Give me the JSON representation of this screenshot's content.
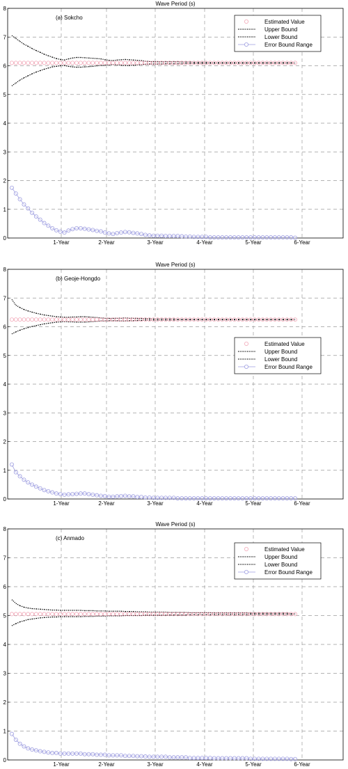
{
  "colors": {
    "estimated": "#f2a8b8",
    "bounds": "#000000",
    "range": "#9d9de0",
    "grid": "#9a9a9a"
  },
  "chart_data": [
    {
      "type": "line",
      "title": "Wave Period (s)",
      "annotation": "(a) Sokcho",
      "xlabel": "",
      "ylabel": "",
      "ylim": [
        0,
        8
      ],
      "yticks": [
        "0",
        "1",
        "2",
        "3",
        "4",
        "5",
        "6",
        "7",
        "8"
      ],
      "xtick_labels": [
        "1-Year",
        "2-Year",
        "3-Year",
        "4-Year",
        "5-Year",
        "6-Year"
      ],
      "grid": true,
      "legend_position": "top-right",
      "legend": [
        "Estimated Value",
        "Upper Bound",
        "Lower Bound",
        "Error Bound Range"
      ],
      "series": [
        {
          "name": "Estimated Value",
          "values": [
            6.1,
            6.1,
            6.1,
            6.1,
            6.1,
            6.1,
            6.1,
            6.1,
            6.1,
            6.1,
            6.1,
            6.1,
            6.1,
            6.1,
            6.1,
            6.1,
            6.1,
            6.1,
            6.1,
            6.1,
            6.1,
            6.1,
            6.1,
            6.1,
            6.1,
            6.1,
            6.1,
            6.1,
            6.1,
            6.1,
            6.1,
            6.1,
            6.1,
            6.1,
            6.1,
            6.1,
            6.1,
            6.1,
            6.1,
            6.1,
            6.1,
            6.1,
            6.1,
            6.1,
            6.1,
            6.1,
            6.1,
            6.1,
            6.1,
            6.1,
            6.1,
            6.1,
            6.1,
            6.1,
            6.1,
            6.1,
            6.1,
            6.1,
            6.1,
            6.1,
            6.1,
            6.1,
            6.1,
            6.1,
            6.1,
            6.1,
            6.1,
            6.1,
            6.1,
            6.1,
            6.1
          ]
        },
        {
          "name": "Upper Bound",
          "values": [
            7.05,
            6.95,
            6.85,
            6.75,
            6.68,
            6.6,
            6.53,
            6.47,
            6.4,
            6.35,
            6.3,
            6.25,
            6.22,
            6.2,
            6.24,
            6.27,
            6.29,
            6.29,
            6.28,
            6.27,
            6.26,
            6.25,
            6.24,
            6.21,
            6.19,
            6.18,
            6.2,
            6.21,
            6.22,
            6.21,
            6.2,
            6.19,
            6.18,
            6.16,
            6.15,
            6.14,
            6.14,
            6.14,
            6.14,
            6.14,
            6.14,
            6.14,
            6.13,
            6.13,
            6.13,
            6.12,
            6.12,
            6.12,
            6.12,
            6.11,
            6.11,
            6.11,
            6.11,
            6.11,
            6.11,
            6.11,
            6.11,
            6.11,
            6.11,
            6.11,
            6.11,
            6.11,
            6.11,
            6.11,
            6.11,
            6.11,
            6.11,
            6.11,
            6.11,
            6.11,
            6.1
          ]
        },
        {
          "name": "Lower Bound",
          "values": [
            5.3,
            5.4,
            5.5,
            5.58,
            5.65,
            5.72,
            5.78,
            5.83,
            5.88,
            5.92,
            5.96,
            5.98,
            6.0,
            6.01,
            5.98,
            5.96,
            5.95,
            5.95,
            5.96,
            5.97,
            5.98,
            6.0,
            6.01,
            6.02,
            6.03,
            6.04,
            6.03,
            6.02,
            6.01,
            6.01,
            6.02,
            6.03,
            6.04,
            6.05,
            6.06,
            6.06,
            6.06,
            6.06,
            6.07,
            6.07,
            6.07,
            6.07,
            6.07,
            6.08,
            6.08,
            6.08,
            6.08,
            6.08,
            6.08,
            6.09,
            6.09,
            6.09,
            6.09,
            6.09,
            6.09,
            6.09,
            6.09,
            6.09,
            6.09,
            6.09,
            6.09,
            6.09,
            6.09,
            6.09,
            6.09,
            6.09,
            6.09,
            6.09,
            6.09,
            6.09,
            6.09
          ]
        },
        {
          "name": "Error Bound Range",
          "values": [
            1.75,
            1.55,
            1.35,
            1.17,
            1.03,
            0.88,
            0.75,
            0.64,
            0.52,
            0.43,
            0.34,
            0.27,
            0.22,
            0.19,
            0.26,
            0.31,
            0.34,
            0.34,
            0.32,
            0.3,
            0.28,
            0.25,
            0.23,
            0.19,
            0.16,
            0.14,
            0.17,
            0.19,
            0.21,
            0.2,
            0.18,
            0.16,
            0.14,
            0.11,
            0.09,
            0.08,
            0.08,
            0.08,
            0.07,
            0.07,
            0.07,
            0.07,
            0.06,
            0.05,
            0.05,
            0.04,
            0.04,
            0.04,
            0.04,
            0.02,
            0.02,
            0.02,
            0.02,
            0.02,
            0.02,
            0.02,
            0.02,
            0.02,
            0.02,
            0.02,
            0.02,
            0.02,
            0.02,
            0.02,
            0.02,
            0.02,
            0.02,
            0.02,
            0.02,
            0.02,
            0.01
          ]
        }
      ]
    },
    {
      "type": "line",
      "title": "Wave Period (s)",
      "annotation": "(b) Geoje-Hongdo",
      "xlabel": "",
      "ylabel": "",
      "ylim": [
        0,
        8
      ],
      "yticks": [
        "0",
        "1",
        "2",
        "3",
        "4",
        "5",
        "6",
        "7",
        "8"
      ],
      "xtick_labels": [
        "1-Year",
        "2-Year",
        "3-Year",
        "4-Year",
        "5-Year",
        "6-Year"
      ],
      "grid": true,
      "legend_position": "center-right",
      "legend": [
        "Estimated Value",
        "Upper Bound",
        "Lower Bound",
        "Error Bound Range"
      ],
      "series": [
        {
          "name": "Estimated Value",
          "values": [
            6.25,
            6.25,
            6.25,
            6.25,
            6.25,
            6.25,
            6.25,
            6.25,
            6.25,
            6.25,
            6.25,
            6.25,
            6.25,
            6.25,
            6.25,
            6.25,
            6.25,
            6.25,
            6.25,
            6.25,
            6.25,
            6.25,
            6.25,
            6.25,
            6.25,
            6.25,
            6.25,
            6.25,
            6.25,
            6.25,
            6.25,
            6.25,
            6.25,
            6.25,
            6.25,
            6.25,
            6.25,
            6.25,
            6.25,
            6.25,
            6.25,
            6.25,
            6.25,
            6.25,
            6.25,
            6.25,
            6.25,
            6.25,
            6.25,
            6.25,
            6.25,
            6.25,
            6.25,
            6.25,
            6.25,
            6.25,
            6.25,
            6.25,
            6.25,
            6.25,
            6.25,
            6.25,
            6.25,
            6.25,
            6.25,
            6.25,
            6.25,
            6.25,
            6.25,
            6.25,
            6.25
          ]
        },
        {
          "name": "Upper Bound",
          "values": [
            6.95,
            6.75,
            6.67,
            6.6,
            6.55,
            6.51,
            6.47,
            6.44,
            6.41,
            6.39,
            6.37,
            6.35,
            6.34,
            6.33,
            6.33,
            6.34,
            6.34,
            6.35,
            6.35,
            6.34,
            6.33,
            6.32,
            6.31,
            6.3,
            6.29,
            6.29,
            6.3,
            6.3,
            6.31,
            6.3,
            6.3,
            6.29,
            6.29,
            6.28,
            6.28,
            6.27,
            6.27,
            6.27,
            6.27,
            6.27,
            6.27,
            6.26,
            6.26,
            6.26,
            6.26,
            6.26,
            6.26,
            6.26,
            6.26,
            6.26,
            6.26,
            6.26,
            6.26,
            6.26,
            6.26,
            6.26,
            6.26,
            6.26,
            6.26,
            6.26,
            6.26,
            6.26,
            6.26,
            6.26,
            6.26,
            6.26,
            6.26,
            6.26,
            6.26,
            6.26,
            6.26
          ]
        },
        {
          "name": "Lower Bound",
          "values": [
            5.75,
            5.82,
            5.88,
            5.93,
            5.97,
            6.01,
            6.04,
            6.07,
            6.1,
            6.12,
            6.14,
            6.16,
            6.17,
            6.18,
            6.17,
            6.17,
            6.16,
            6.16,
            6.16,
            6.17,
            6.18,
            6.19,
            6.2,
            6.2,
            6.21,
            6.21,
            6.21,
            6.2,
            6.2,
            6.21,
            6.21,
            6.22,
            6.22,
            6.23,
            6.23,
            6.23,
            6.23,
            6.23,
            6.23,
            6.23,
            6.23,
            6.24,
            6.24,
            6.24,
            6.24,
            6.24,
            6.24,
            6.24,
            6.24,
            6.24,
            6.24,
            6.24,
            6.24,
            6.24,
            6.24,
            6.24,
            6.24,
            6.24,
            6.24,
            6.24,
            6.24,
            6.24,
            6.24,
            6.24,
            6.24,
            6.24,
            6.24,
            6.24,
            6.24,
            6.24,
            6.24
          ]
        },
        {
          "name": "Error Bound Range",
          "values": [
            1.2,
            0.93,
            0.79,
            0.67,
            0.58,
            0.5,
            0.43,
            0.37,
            0.31,
            0.27,
            0.23,
            0.19,
            0.17,
            0.15,
            0.16,
            0.17,
            0.18,
            0.19,
            0.19,
            0.17,
            0.15,
            0.13,
            0.11,
            0.1,
            0.08,
            0.08,
            0.09,
            0.1,
            0.11,
            0.09,
            0.09,
            0.07,
            0.07,
            0.05,
            0.05,
            0.04,
            0.04,
            0.04,
            0.04,
            0.04,
            0.04,
            0.02,
            0.02,
            0.02,
            0.02,
            0.02,
            0.02,
            0.02,
            0.02,
            0.02,
            0.02,
            0.02,
            0.02,
            0.02,
            0.02,
            0.02,
            0.02,
            0.02,
            0.02,
            0.02,
            0.02,
            0.02,
            0.02,
            0.02,
            0.02,
            0.02,
            0.02,
            0.02,
            0.02,
            0.02,
            0.02
          ]
        }
      ]
    },
    {
      "type": "line",
      "title": "Wave Period (s)",
      "annotation": "(c) Anmado",
      "xlabel": "",
      "ylabel": "",
      "ylim": [
        0,
        8
      ],
      "yticks": [
        "0",
        "1",
        "2",
        "3",
        "4",
        "5",
        "6",
        "7",
        "8"
      ],
      "xtick_labels": [
        "1-Year",
        "2-Year",
        "3-Year",
        "4-Year",
        "5-Year",
        "6-Year"
      ],
      "grid": true,
      "legend_position": "top-right",
      "legend": [
        "Estimated Value",
        "Upper Bound",
        "Lower Bound",
        "Error Bound Range"
      ],
      "series": [
        {
          "name": "Estimated Value",
          "values": [
            5.05,
            5.05,
            5.05,
            5.05,
            5.05,
            5.05,
            5.05,
            5.05,
            5.05,
            5.05,
            5.05,
            5.05,
            5.05,
            5.05,
            5.05,
            5.05,
            5.05,
            5.05,
            5.05,
            5.05,
            5.05,
            5.05,
            5.05,
            5.05,
            5.05,
            5.05,
            5.05,
            5.05,
            5.05,
            5.05,
            5.05,
            5.05,
            5.05,
            5.05,
            5.05,
            5.05,
            5.05,
            5.05,
            5.05,
            5.05,
            5.05,
            5.05,
            5.05,
            5.05,
            5.05,
            5.05,
            5.05,
            5.05,
            5.05,
            5.05,
            5.05,
            5.05,
            5.05,
            5.05,
            5.05,
            5.05,
            5.05,
            5.05,
            5.05,
            5.05,
            5.05,
            5.05,
            5.05,
            5.05,
            5.05,
            5.05,
            5.05,
            5.05,
            5.05,
            5.05,
            5.05
          ]
        },
        {
          "name": "Upper Bound",
          "values": [
            5.55,
            5.42,
            5.34,
            5.29,
            5.26,
            5.24,
            5.23,
            5.22,
            5.21,
            5.2,
            5.19,
            5.19,
            5.18,
            5.18,
            5.18,
            5.18,
            5.18,
            5.18,
            5.17,
            5.17,
            5.17,
            5.16,
            5.16,
            5.16,
            5.15,
            5.15,
            5.15,
            5.15,
            5.14,
            5.14,
            5.14,
            5.13,
            5.13,
            5.13,
            5.12,
            5.12,
            5.12,
            5.12,
            5.12,
            5.11,
            5.11,
            5.11,
            5.11,
            5.11,
            5.1,
            5.1,
            5.1,
            5.1,
            5.1,
            5.1,
            5.09,
            5.09,
            5.09,
            5.09,
            5.09,
            5.09,
            5.09,
            5.09,
            5.09,
            5.08,
            5.08,
            5.08,
            5.08,
            5.08,
            5.08,
            5.08,
            5.08,
            5.08,
            5.08,
            5.07,
            5.07
          ]
        },
        {
          "name": "Lower Bound",
          "values": [
            4.65,
            4.72,
            4.78,
            4.82,
            4.86,
            4.88,
            4.9,
            4.92,
            4.93,
            4.94,
            4.95,
            4.95,
            4.96,
            4.96,
            4.96,
            4.96,
            4.96,
            4.96,
            4.97,
            4.97,
            4.97,
            4.98,
            4.98,
            4.98,
            4.99,
            4.99,
            4.99,
            4.99,
            5.0,
            5.0,
            5.0,
            5.0,
            5.0,
            5.01,
            5.01,
            5.01,
            5.01,
            5.01,
            5.01,
            5.02,
            5.02,
            5.02,
            5.02,
            5.02,
            5.03,
            5.03,
            5.03,
            5.03,
            5.03,
            5.03,
            5.03,
            5.03,
            5.03,
            5.03,
            5.03,
            5.03,
            5.03,
            5.03,
            5.03,
            5.04,
            5.04,
            5.04,
            5.04,
            5.04,
            5.04,
            5.04,
            5.04,
            5.04,
            5.04,
            5.04,
            5.04
          ]
        },
        {
          "name": "Error Bound Range",
          "values": [
            0.9,
            0.7,
            0.56,
            0.47,
            0.4,
            0.36,
            0.33,
            0.3,
            0.28,
            0.26,
            0.24,
            0.24,
            0.22,
            0.22,
            0.22,
            0.22,
            0.22,
            0.22,
            0.2,
            0.2,
            0.2,
            0.18,
            0.18,
            0.18,
            0.16,
            0.16,
            0.16,
            0.16,
            0.14,
            0.14,
            0.14,
            0.13,
            0.13,
            0.12,
            0.11,
            0.11,
            0.11,
            0.11,
            0.11,
            0.09,
            0.09,
            0.09,
            0.09,
            0.09,
            0.07,
            0.07,
            0.07,
            0.07,
            0.07,
            0.07,
            0.06,
            0.06,
            0.06,
            0.06,
            0.06,
            0.06,
            0.06,
            0.06,
            0.06,
            0.04,
            0.04,
            0.04,
            0.04,
            0.04,
            0.04,
            0.04,
            0.04,
            0.04,
            0.04,
            0.03,
            0.03
          ]
        }
      ]
    }
  ]
}
